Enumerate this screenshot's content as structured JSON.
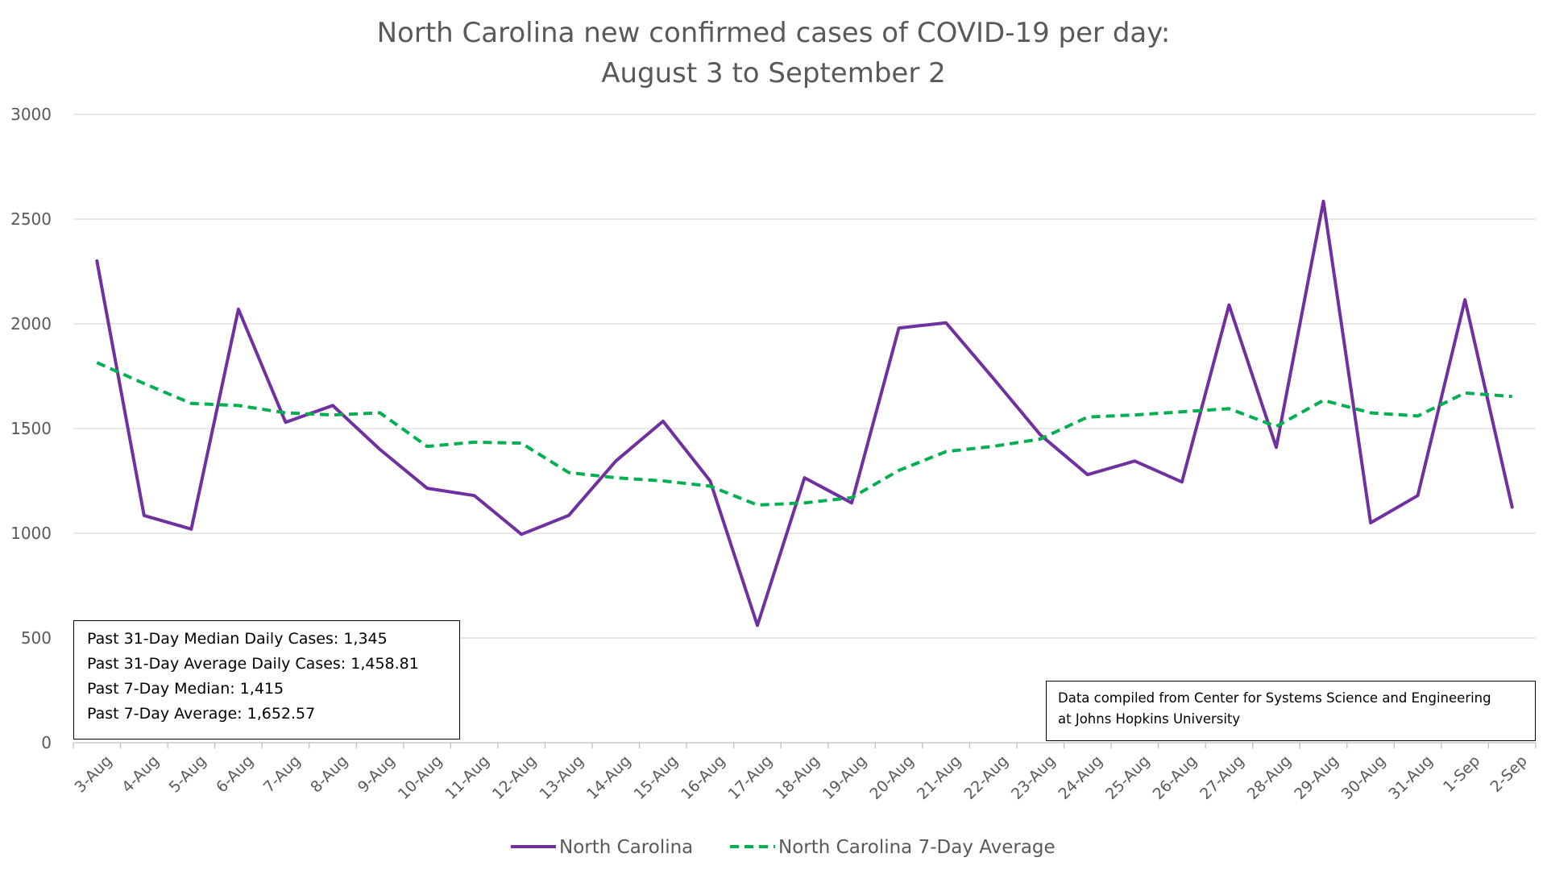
{
  "chart_data": {
    "type": "line",
    "title": "North Carolina new confirmed cases of COVID-19 per day:",
    "subtitle": "August 3 to September 2",
    "categories": [
      "3-Aug",
      "4-Aug",
      "5-Aug",
      "6-Aug",
      "7-Aug",
      "8-Aug",
      "9-Aug",
      "10-Aug",
      "11-Aug",
      "12-Aug",
      "13-Aug",
      "14-Aug",
      "15-Aug",
      "16-Aug",
      "17-Aug",
      "18-Aug",
      "19-Aug",
      "20-Aug",
      "21-Aug",
      "22-Aug",
      "23-Aug",
      "24-Aug",
      "25-Aug",
      "26-Aug",
      "27-Aug",
      "28-Aug",
      "29-Aug",
      "30-Aug",
      "31-Aug",
      "1-Sep",
      "2-Sep"
    ],
    "series": [
      {
        "name": "North Carolina",
        "color": "#7030a0",
        "style": "solid",
        "values": [
          2300,
          1085,
          1020,
          2070,
          1530,
          1610,
          1400,
          1215,
          1180,
          995,
          1085,
          1345,
          1535,
          1250,
          560,
          1265,
          1145,
          1980,
          2005,
          1740,
          1470,
          1280,
          1345,
          1245,
          2090,
          1410,
          2585,
          1050,
          1180,
          2115,
          1125
        ]
      },
      {
        "name": "North Carolina 7-Day Average",
        "color": "#00b050",
        "style": "dashed",
        "values": [
          1815,
          1715,
          1620,
          1610,
          1575,
          1565,
          1575,
          1415,
          1435,
          1430,
          1290,
          1265,
          1250,
          1225,
          1135,
          1145,
          1170,
          1300,
          1390,
          1415,
          1450,
          1555,
          1565,
          1580,
          1595,
          1510,
          1635,
          1575,
          1560,
          1670,
          1653
        ]
      }
    ],
    "ylim": [
      0,
      3000
    ],
    "yticks": [
      0,
      500,
      1000,
      1500,
      2000,
      2500,
      3000
    ],
    "grid": true,
    "legend_position": "bottom",
    "annotations": {
      "stats": [
        "Past 31-Day Median Daily Cases: 1,345",
        "Past 31-Day Average Daily Cases: 1,458.81",
        "Past 7-Day Median: 1,415",
        "Past 7-Day Average: 1,652.57"
      ],
      "source": [
        "Data compiled from Center for Systems Science and Engineering",
        "at Johns Hopkins University"
      ]
    }
  }
}
